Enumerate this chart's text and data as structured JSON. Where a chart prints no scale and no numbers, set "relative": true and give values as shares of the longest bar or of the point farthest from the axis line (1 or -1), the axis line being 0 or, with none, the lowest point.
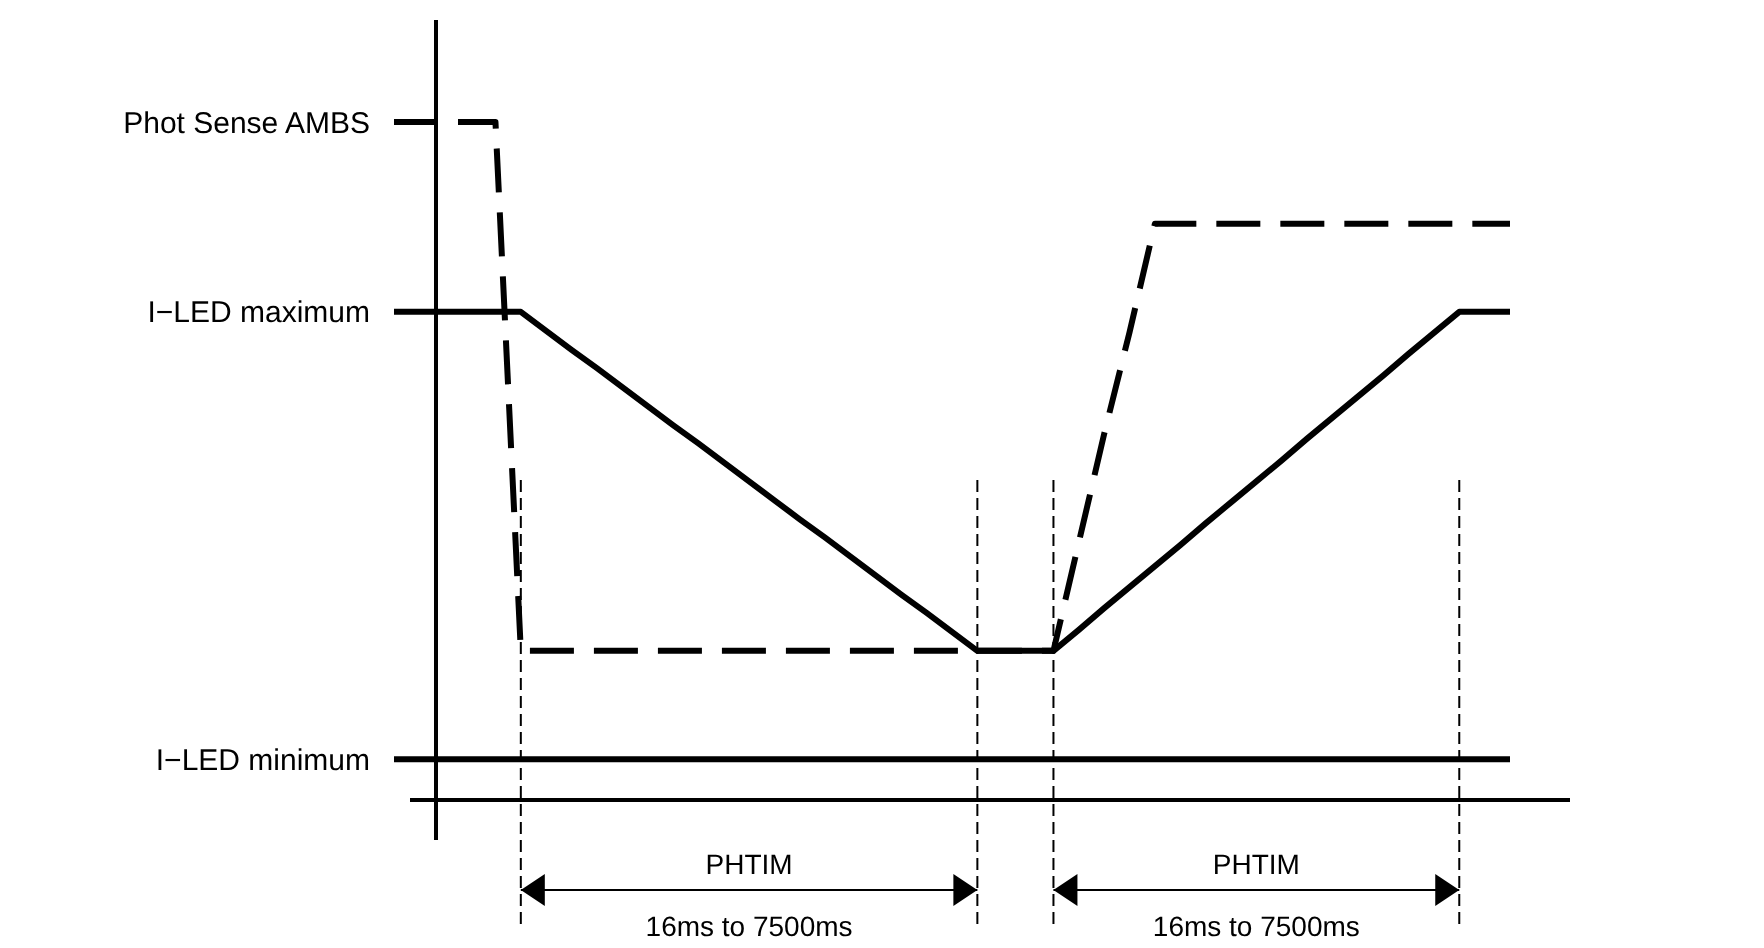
{
  "chart_data": {
    "type": "line",
    "relative": true,
    "categories": [
      null,
      null,
      null,
      null,
      null,
      null,
      null,
      null,
      null,
      null,
      null,
      null,
      null,
      null,
      null,
      null,
      null,
      null,
      null,
      null,
      null,
      null,
      null,
      null,
      null,
      null,
      null,
      null,
      null,
      null,
      null,
      null,
      null,
      null,
      null,
      null,
      null,
      null,
      null,
      null,
      null,
      null,
      null,
      null,
      null
    ],
    "series": [
      {
        "name": "I−LED maximum",
        "color": "#000000",
        "line_style": "solid",
        "values": [
          0.72,
          0.72,
          0.72,
          0.72,
          0.72,
          0.72,
          0.692,
          0.664,
          0.637,
          0.609,
          0.581,
          0.553,
          0.526,
          0.498,
          0.47,
          0.442,
          0.414,
          0.387,
          0.359,
          0.331,
          0.303,
          0.276,
          0.248,
          0.22,
          0.22,
          0.22,
          0.22,
          0.251,
          0.283,
          0.314,
          0.345,
          0.376,
          0.408,
          0.439,
          0.47,
          0.501,
          0.533,
          0.564,
          0.595,
          0.626,
          0.658,
          0.689,
          0.72,
          0.72,
          0.72
        ]
      },
      {
        "name": "Phot Sense AMBS",
        "color": "#000000",
        "line_style": "dashed",
        "values": [
          1,
          1,
          1,
          1,
          1,
          0.22,
          0.22,
          0.22,
          0.22,
          0.22,
          0.22,
          0.22,
          0.22,
          0.22,
          0.22,
          0.22,
          0.22,
          0.22,
          0.22,
          0.22,
          0.22,
          0.22,
          0.22,
          0.22,
          0.22,
          0.22,
          0.22,
          0.38,
          0.54,
          0.69,
          0.85,
          0.85,
          0.85,
          0.85,
          0.85,
          0.85,
          0.85,
          0.85,
          0.85,
          0.85,
          0.85,
          0.85,
          0.85,
          0.85,
          0.85
        ]
      },
      {
        "name": "I−LED minimum",
        "color": "#000000",
        "line_style": "solid",
        "values": [
          0.06,
          0.06,
          0.06,
          0.06,
          0.06,
          0.06,
          0.06,
          0.06,
          0.06,
          0.06,
          0.06,
          0.06,
          0.06,
          0.06,
          0.06,
          0.06,
          0.06,
          0.06,
          0.06,
          0.06,
          0.06,
          0.06,
          0.06,
          0.06,
          0.06,
          0.06,
          0.06,
          0.06,
          0.06,
          0.06,
          0.06,
          0.06,
          0.06,
          0.06,
          0.06,
          0.06,
          0.06,
          0.06,
          0.06,
          0.06,
          0.06,
          0.06,
          0.06,
          0.06,
          0.06
        ]
      }
    ],
    "annotations": [
      "PHTIM\n16ms to 7500ms",
      "PHTIM\n16ms to 7500ms"
    ]
  }
}
